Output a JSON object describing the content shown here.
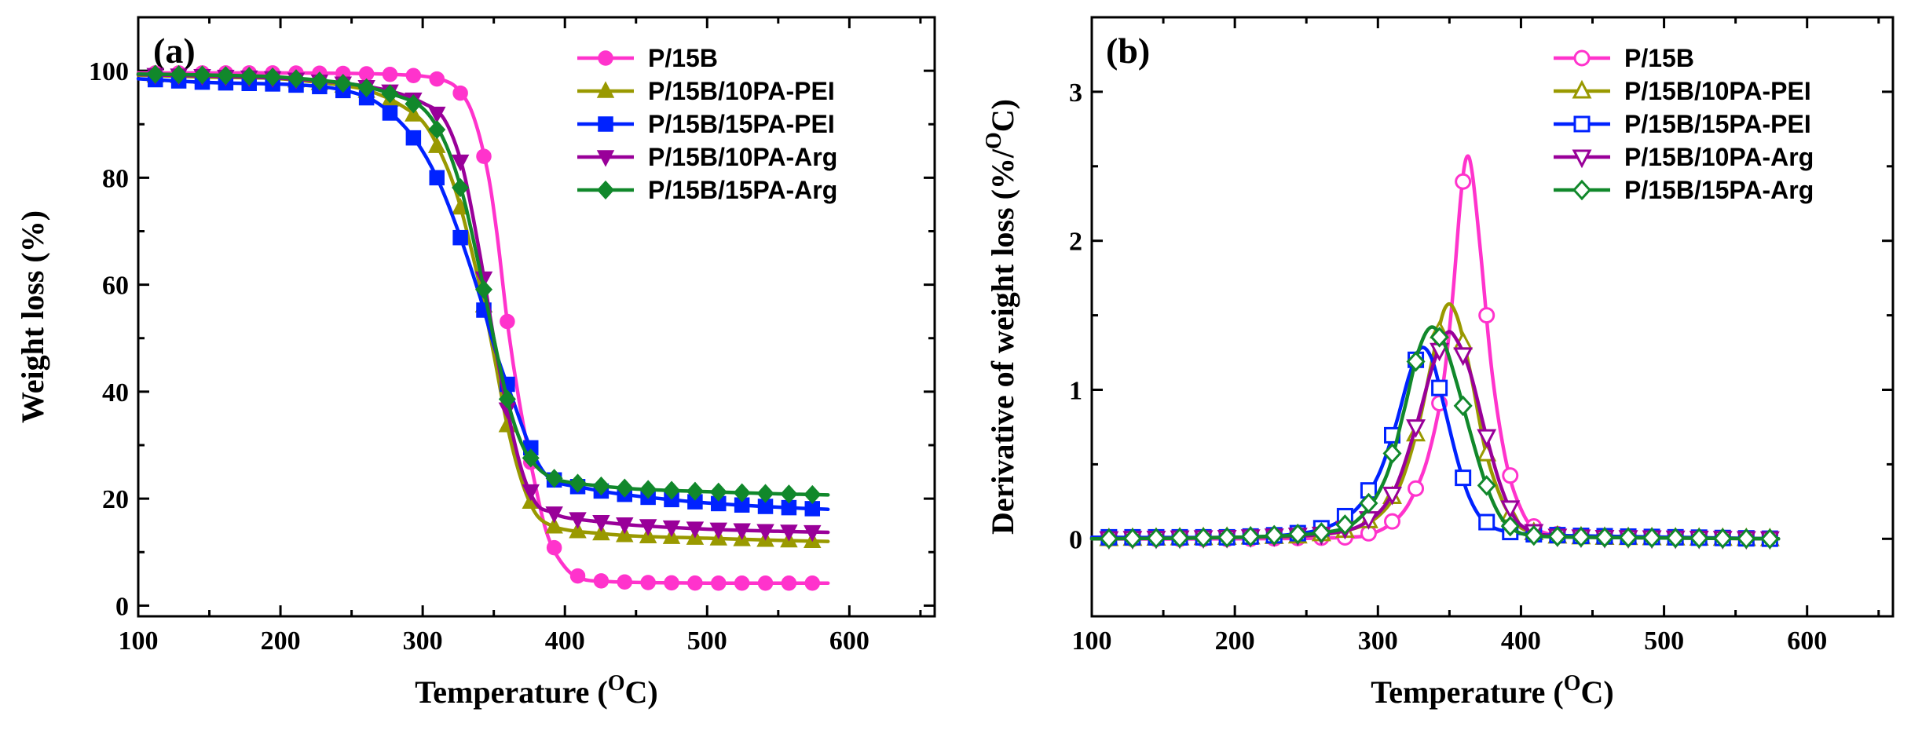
{
  "chart_data": [
    {
      "panel_label": "(a)",
      "type": "line",
      "xlabel": "Temperature (",
      "xlabel_sup": "O",
      "xlabel_end": "C)",
      "ylabel": "Weight loss (%)",
      "xlim": [
        100,
        660
      ],
      "ylim": [
        -2,
        110
      ],
      "xticks": [
        100,
        200,
        300,
        400,
        500,
        600
      ],
      "yticks": [
        0,
        20,
        40,
        60,
        80,
        100
      ],
      "xtick_labels": [
        "100",
        "200",
        "300",
        "400",
        "500",
        "600"
      ],
      "ytick_labels": [
        "0",
        "20",
        "40",
        "60",
        "80",
        "100"
      ],
      "legend_position": "top-right",
      "series": [
        {
          "name": "P/15B",
          "color": "#ff33cc",
          "marker": "circle",
          "filled": true,
          "x": [
            100,
            150,
            200,
            250,
            280,
            300,
            315,
            325,
            335,
            345,
            352,
            360,
            368,
            378,
            388,
            400,
            412,
            430,
            460,
            500,
            550,
            585
          ],
          "y": [
            99.6,
            99.6,
            99.6,
            99.5,
            99.3,
            99.0,
            98.2,
            96.5,
            92,
            82,
            70,
            52,
            38,
            24,
            13,
            7.2,
            5.0,
            4.5,
            4.3,
            4.2,
            4.2,
            4.2
          ]
        },
        {
          "name": "P/15B/10PA-PEI",
          "color": "#999900",
          "marker": "triangle-up",
          "filled": true,
          "x": [
            100,
            150,
            200,
            250,
            270,
            285,
            300,
            312,
            325,
            340,
            350,
            360,
            370,
            380,
            392,
            405,
            420,
            450,
            500,
            550,
            585
          ],
          "y": [
            99.2,
            98.8,
            98.5,
            97.0,
            95.5,
            93.5,
            90.5,
            85,
            76,
            60,
            47,
            33,
            23,
            17,
            14.8,
            14.0,
            13.6,
            13.0,
            12.6,
            12.2,
            12.0
          ]
        },
        {
          "name": "P/15B/15PA-PEI",
          "color": "#0022ff",
          "marker": "square",
          "filled": true,
          "x": [
            100,
            150,
            200,
            230,
            250,
            265,
            280,
            295,
            310,
            325,
            340,
            352,
            364,
            375,
            385,
            395,
            410,
            430,
            460,
            500,
            550,
            585
          ],
          "y": [
            98.5,
            97.8,
            97.5,
            97.0,
            96.0,
            94.5,
            91.5,
            87,
            80,
            70,
            58,
            47,
            38,
            30,
            25,
            23,
            22.2,
            21.2,
            20.2,
            19.2,
            18.4,
            18.0
          ]
        },
        {
          "name": "P/15B/10PA-Arg",
          "color": "#990099",
          "marker": "triangle-down",
          "filled": true,
          "x": [
            100,
            150,
            200,
            250,
            280,
            300,
            315,
            328,
            340,
            350,
            360,
            370,
            380,
            390,
            400,
            420,
            450,
            500,
            550,
            585
          ],
          "y": [
            99.3,
            99.0,
            98.6,
            97.5,
            96,
            94,
            91,
            82,
            66,
            50,
            36,
            25,
            19,
            17.5,
            16.5,
            15.8,
            15.0,
            14.3,
            13.9,
            13.7
          ]
        },
        {
          "name": "P/15B/15PA-Arg",
          "color": "#11882b",
          "marker": "diamond",
          "filled": true,
          "x": [
            100,
            150,
            200,
            250,
            280,
            300,
            315,
            328,
            340,
            350,
            360,
            370,
            380,
            390,
            400,
            420,
            450,
            500,
            550,
            585
          ],
          "y": [
            99.4,
            99.2,
            98.8,
            97.5,
            95.5,
            93,
            87,
            77,
            63,
            50,
            38,
            30,
            26,
            24,
            23.2,
            22.5,
            21.8,
            21.3,
            20.9,
            20.7
          ]
        }
      ]
    },
    {
      "panel_label": "(b)",
      "type": "line",
      "xlabel": "Temperature (",
      "xlabel_sup": "O",
      "xlabel_end": "C)",
      "ylabel": "Derivative of weight loss (%/",
      "ylabel_sup": "O",
      "ylabel_end": "C)",
      "xlim": [
        100,
        660
      ],
      "ylim": [
        -0.52,
        3.5
      ],
      "xticks": [
        100,
        200,
        300,
        400,
        500,
        600
      ],
      "yticks": [
        0,
        1,
        2,
        3
      ],
      "xtick_labels": [
        "100",
        "200",
        "300",
        "400",
        "500",
        "600"
      ],
      "ytick_labels": [
        "0",
        "1",
        "2",
        "3"
      ],
      "legend_position": "top-right",
      "series": [
        {
          "name": "P/15B",
          "color": "#ff33cc",
          "marker": "circle",
          "filled": false,
          "x": [
            100,
            200,
            280,
            300,
            315,
            325,
            335,
            345,
            352,
            358,
            362,
            366,
            372,
            380,
            390,
            400,
            410,
            430,
            480,
            580
          ],
          "y": [
            0,
            0,
            0.01,
            0.05,
            0.15,
            0.3,
            0.55,
            1.0,
            1.6,
            2.3,
            2.56,
            2.45,
            1.9,
            1.1,
            0.5,
            0.2,
            0.07,
            0.02,
            0.01,
            0.0
          ]
        },
        {
          "name": "P/15B/10PA-PEI",
          "color": "#999900",
          "marker": "triangle-up",
          "filled": false,
          "x": [
            100,
            200,
            250,
            280,
            300,
            315,
            328,
            338,
            347,
            355,
            365,
            375,
            385,
            395,
            405,
            420,
            450,
            580
          ],
          "y": [
            0,
            0.01,
            0.02,
            0.06,
            0.15,
            0.35,
            0.75,
            1.2,
            1.55,
            1.5,
            1.1,
            0.6,
            0.3,
            0.12,
            0.05,
            0.02,
            0.01,
            0.0
          ]
        },
        {
          "name": "P/15B/15PA-PEI",
          "color": "#0022ff",
          "marker": "square",
          "filled": false,
          "x": [
            100,
            200,
            240,
            265,
            285,
            300,
            312,
            322,
            330,
            338,
            346,
            355,
            363,
            372,
            382,
            395,
            410,
            440,
            580
          ],
          "y": [
            0.01,
            0.01,
            0.03,
            0.08,
            0.2,
            0.42,
            0.75,
            1.1,
            1.28,
            1.2,
            0.9,
            0.55,
            0.3,
            0.14,
            0.07,
            0.04,
            0.03,
            0.02,
            0.0
          ]
        },
        {
          "name": "P/15B/10PA-Arg",
          "color": "#990099",
          "marker": "triangle-down",
          "filled": false,
          "x": [
            100,
            200,
            260,
            290,
            310,
            325,
            338,
            348,
            356,
            365,
            375,
            385,
            395,
            405,
            420,
            450,
            580
          ],
          "y": [
            0,
            0.01,
            0.03,
            0.1,
            0.3,
            0.7,
            1.15,
            1.38,
            1.32,
            1.1,
            0.72,
            0.38,
            0.15,
            0.06,
            0.02,
            0.01,
            0.0
          ]
        },
        {
          "name": "P/15B/15PA-Arg",
          "color": "#11882b",
          "marker": "diamond",
          "filled": false,
          "x": [
            100,
            200,
            260,
            285,
            305,
            318,
            328,
            337,
            346,
            355,
            365,
            375,
            385,
            395,
            410,
            450,
            580
          ],
          "y": [
            0,
            0.01,
            0.04,
            0.12,
            0.4,
            0.85,
            1.25,
            1.42,
            1.32,
            1.05,
            0.7,
            0.38,
            0.16,
            0.06,
            0.02,
            0.01,
            0.0
          ]
        }
      ]
    }
  ]
}
